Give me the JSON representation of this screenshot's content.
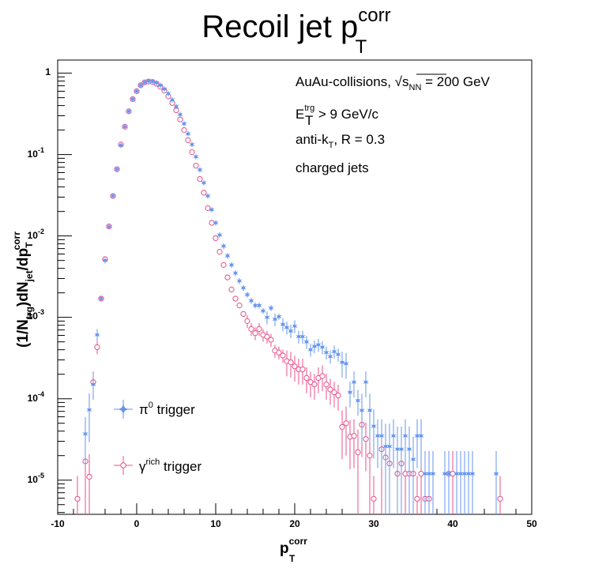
{
  "chart_data": {
    "type": "scatter",
    "title": {
      "main": "Recoil jet p",
      "sup": "corr",
      "sub": "T"
    },
    "xlabel": {
      "main": "p",
      "sup": "corr",
      "sub": "T"
    },
    "ylabel": {
      "p1": "(1/N",
      "sub1": "trg",
      "p2": ")dN",
      "sub2": "jet",
      "p3": "/dp",
      "sub3": "T",
      "sup3": "corr"
    },
    "xlim": [
      -10,
      50
    ],
    "ylim": [
      3.8e-06,
      1.45
    ],
    "ylog": true,
    "xticks": [
      "-10",
      "0",
      "10",
      "20",
      "30",
      "40",
      "50"
    ],
    "yticks": [
      {
        "base": "1",
        "exp": ""
      },
      {
        "base": "10",
        "exp": "-1"
      },
      {
        "base": "10",
        "exp": "-2"
      },
      {
        "base": "10",
        "exp": "-3"
      },
      {
        "base": "10",
        "exp": "-4"
      },
      {
        "base": "10",
        "exp": "-5"
      }
    ],
    "annotations": {
      "line1_pre": "AuAu-collisions, ",
      "line1_root": "s",
      "line1_sub": "NN",
      "line1_post": " = 200 GeV",
      "line2_main": "E",
      "line2_sup": "trg",
      "line2_sub": "T",
      "line2_post": " > 9 GeV/c",
      "line3_pre": "anti-k",
      "line3_sub": "T",
      "line3_post": ", R = 0.3",
      "line4": "charged jets"
    },
    "series": [
      {
        "name": "π⁰ trigger",
        "legend_main": "π",
        "legend_sup": "0",
        "legend_post": " trigger",
        "color": "#6495ed",
        "marker": "star",
        "x": [
          -6.5,
          -6.0,
          -5.5,
          -5.0,
          -4.5,
          -4.0,
          -3.5,
          -3.0,
          -2.5,
          -2.0,
          -1.5,
          -1.0,
          -0.5,
          0.0,
          0.5,
          1.0,
          1.5,
          2.0,
          2.5,
          3.0,
          3.5,
          4.0,
          4.5,
          5.0,
          5.5,
          6.0,
          6.5,
          7.0,
          7.5,
          8.0,
          8.5,
          9.0,
          9.5,
          10.0,
          10.5,
          11.0,
          11.5,
          12.0,
          12.5,
          13.0,
          13.5,
          14.0,
          14.5,
          15.0,
          15.5,
          16.0,
          16.5,
          17.0,
          17.5,
          18.0,
          18.5,
          19.0,
          19.5,
          20.0,
          20.5,
          21.0,
          21.5,
          22.0,
          22.5,
          23.0,
          23.5,
          24.0,
          24.5,
          25.0,
          25.5,
          26.0,
          26.5,
          27.0,
          27.5,
          28.0,
          28.5,
          29.0,
          29.5,
          30.0,
          30.5,
          31.0,
          31.5,
          32.0,
          32.5,
          33.0,
          33.5,
          34.0,
          34.5,
          35.0,
          35.5,
          36.0,
          36.5,
          37.0,
          37.5,
          39.0,
          39.5,
          40.5,
          41.0,
          41.5,
          42.0,
          42.5,
          45.5
        ],
        "y": [
          3.7e-05,
          7.3e-05,
          0.00015,
          0.00061,
          0.0017,
          0.005,
          0.013,
          0.031,
          0.066,
          0.13,
          0.22,
          0.34,
          0.48,
          0.6,
          0.71,
          0.77,
          0.8,
          0.79,
          0.76,
          0.71,
          0.64,
          0.56,
          0.47,
          0.39,
          0.31,
          0.24,
          0.18,
          0.133,
          0.094,
          0.065,
          0.045,
          0.031,
          0.021,
          0.0145,
          0.0103,
          0.0075,
          0.0057,
          0.0044,
          0.0035,
          0.0028,
          0.0023,
          0.0019,
          0.0016,
          0.0014,
          0.0014,
          0.0012,
          0.001,
          0.0013,
          0.00095,
          0.00102,
          0.00082,
          0.00075,
          0.00068,
          0.00078,
          0.00058,
          0.00058,
          0.0005,
          0.0004,
          0.00044,
          0.00046,
          0.00043,
          0.00037,
          0.00033,
          0.00038,
          0.00035,
          0.00028,
          0.00027,
          0.00012,
          0.00016,
          9.5e-05,
          7.2e-05,
          0.00016,
          7.2e-05,
          4.6e-05,
          3.5e-05,
          3.5e-05,
          2.6e-05,
          2.6e-05,
          3.5e-05,
          2.4e-05,
          2.4e-05,
          3.5e-05,
          2.4e-05,
          1.8e-05,
          3.5e-05,
          3.5e-05,
          1.2e-05,
          1.2e-05,
          1.2e-05,
          1.2e-05,
          1.2e-05,
          1.2e-05,
          1.2e-05,
          1.2e-05,
          1.2e-05,
          1.2e-05,
          1.2e-05
        ]
      },
      {
        "name": "γ^rich trigger",
        "legend_main": "γ",
        "legend_sup": "rich",
        "legend_post": " trigger",
        "color": "#e8508a",
        "marker": "open-circle",
        "x": [
          -7.5,
          -6.5,
          -6.0,
          -5.5,
          -5.0,
          -4.5,
          -4.0,
          -3.5,
          -3.0,
          -2.5,
          -2.0,
          -1.5,
          -1.0,
          -0.5,
          0.0,
          0.5,
          1.0,
          1.5,
          2.0,
          2.5,
          3.0,
          3.5,
          4.0,
          4.5,
          5.0,
          5.5,
          6.0,
          6.5,
          7.0,
          7.5,
          8.0,
          8.5,
          9.0,
          9.5,
          10.0,
          10.5,
          11.0,
          11.5,
          12.0,
          12.5,
          13.0,
          13.5,
          14.0,
          14.5,
          15.0,
          15.5,
          16.0,
          16.5,
          17.0,
          17.5,
          18.0,
          18.5,
          19.0,
          19.5,
          20.0,
          20.5,
          21.0,
          21.5,
          22.0,
          22.5,
          23.0,
          23.5,
          24.0,
          24.5,
          25.0,
          25.5,
          26.0,
          26.5,
          27.0,
          27.5,
          28.0,
          28.5,
          29.0,
          29.5,
          30.0,
          31.0,
          31.5,
          32.0,
          33.0,
          33.5,
          34.0,
          34.5,
          35.0,
          35.5,
          36.0,
          36.5,
          37.0,
          39.5,
          40.0,
          46.0
        ],
        "y": [
          5.9e-06,
          1.7e-05,
          1.1e-05,
          0.00016,
          0.00043,
          0.0017,
          0.0052,
          0.0131,
          0.031,
          0.066,
          0.133,
          0.22,
          0.34,
          0.48,
          0.6,
          0.71,
          0.77,
          0.79,
          0.78,
          0.74,
          0.68,
          0.61,
          0.52,
          0.43,
          0.35,
          0.27,
          0.2,
          0.15,
          0.107,
          0.073,
          0.05,
          0.034,
          0.022,
          0.0145,
          0.0094,
          0.0064,
          0.0044,
          0.0031,
          0.0022,
          0.0017,
          0.0014,
          0.0011,
          0.0009,
          0.00072,
          0.00064,
          0.00072,
          0.00061,
          0.00058,
          0.00053,
          0.00039,
          0.00037,
          0.00034,
          0.00029,
          0.00028,
          0.00025,
          0.00023,
          0.00023,
          0.00018,
          0.00016,
          0.00015,
          0.00018,
          0.00019,
          0.00015,
          0.00013,
          0.00012,
          0.00011,
          4.5e-05,
          5e-05,
          3.4e-05,
          3.5e-05,
          2.2e-05,
          4.8e-05,
          3.2e-05,
          2e-05,
          5.9e-06,
          2.4e-05,
          1.9e-05,
          1.6e-05,
          1.2e-05,
          1.6e-05,
          1.2e-05,
          1.2e-05,
          1.2e-05,
          5.9e-06,
          1.2e-05,
          5.9e-06,
          5.9e-06,
          1.2e-05,
          1.2e-05,
          5.9e-06
        ]
      }
    ],
    "grid": false,
    "legend_position": "bottom-left",
    "colors": {
      "pi0": "#6495ed",
      "gamma": "#e8508a",
      "axis": "#000000"
    }
  }
}
